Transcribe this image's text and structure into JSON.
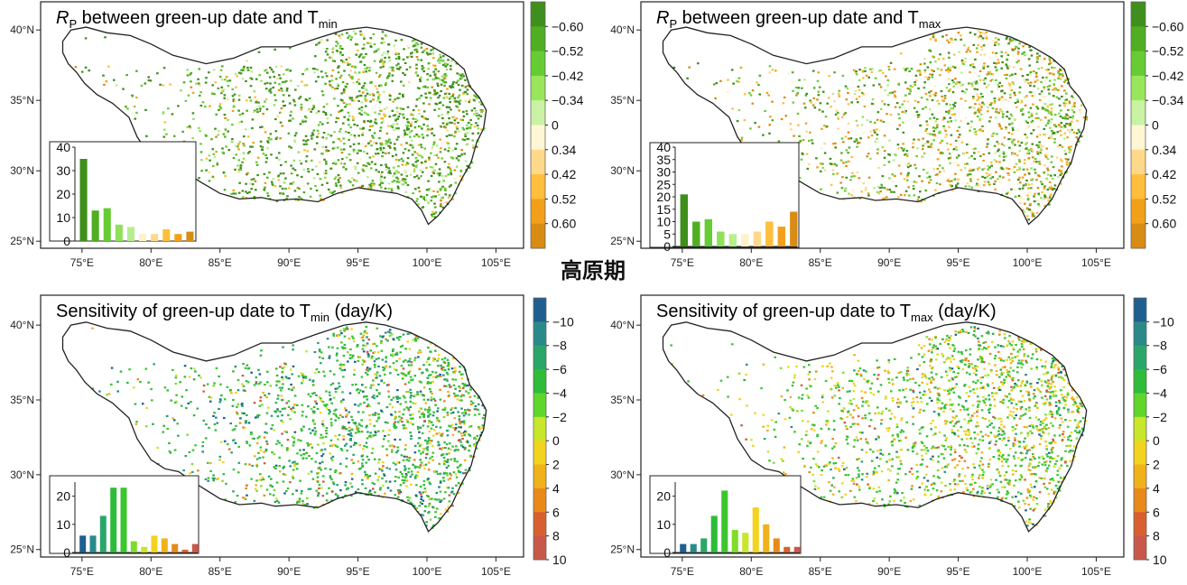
{
  "center_label": "高原期",
  "map_axes": {
    "x_ticks": [
      "75°E",
      "80°E",
      "85°E",
      "90°E",
      "95°E",
      "100°E",
      "105°E"
    ],
    "y_ticks": [
      "40°N",
      "35°N",
      "30°N",
      "25°N"
    ]
  },
  "colors": {
    "rp_scale": [
      "#3f8f1c",
      "#4fae22",
      "#66cc33",
      "#99e65c",
      "#c9f2a4",
      "#fff6d5",
      "#ffd98a",
      "#ffbe3c",
      "#f2a01a",
      "#d98c14"
    ],
    "sens_scale": [
      "#1f5f8f",
      "#2a8a8a",
      "#2aa66a",
      "#2ebc3a",
      "#5fd62a",
      "#c8e62a",
      "#f2d31f",
      "#f0b11a",
      "#e8891a",
      "#d86030",
      "#c8584a"
    ]
  },
  "chart_data": [
    {
      "id": "rp_tmin",
      "type": "bar",
      "title_parts": {
        "r": "R",
        "r_sub": "P",
        "text": " between green-up date and T",
        "sub": "min"
      },
      "colorbar_labels": [
        "-0.60",
        "-0.52",
        "-0.42",
        "-0.34",
        "0",
        "0.34",
        "0.42",
        "0.52",
        "0.60"
      ],
      "inset": {
        "values": [
          35,
          13,
          14,
          7,
          6,
          3,
          3,
          5,
          3,
          4
        ],
        "colors": [
          "#3f8f1c",
          "#4fae22",
          "#66cc33",
          "#8fe05a",
          "#b6ee8e",
          "#fff1c8",
          "#ffd98a",
          "#ffbe3c",
          "#f2a01a",
          "#d98c14"
        ],
        "ylim": [
          0,
          40
        ],
        "y_ticks": [
          0,
          10,
          20,
          30,
          40
        ]
      }
    },
    {
      "id": "rp_tmax",
      "type": "bar",
      "title_parts": {
        "r": "R",
        "r_sub": "P",
        "text": " between green-up date and T",
        "sub": "max"
      },
      "colorbar_labels": [
        "-0.60",
        "-0.52",
        "-0.42",
        "-0.34",
        "0",
        "0.34",
        "0.42",
        "0.52",
        "0.60"
      ],
      "inset": {
        "values": [
          21,
          10,
          11,
          6,
          5,
          5,
          6,
          10,
          8,
          14
        ],
        "colors": [
          "#3f8f1c",
          "#4fae22",
          "#66cc33",
          "#8fe05a",
          "#b6ee8e",
          "#fff1c8",
          "#ffd98a",
          "#ffbe3c",
          "#f2a01a",
          "#d98c14"
        ],
        "ylim": [
          0,
          40
        ],
        "y_ticks": [
          0,
          5,
          10,
          15,
          20,
          25,
          30,
          35,
          40
        ]
      }
    },
    {
      "id": "sens_tmin",
      "type": "bar",
      "title_parts": {
        "text": "Sensitivity of green-up date to T",
        "sub": "min",
        "suffix": " (day/K)"
      },
      "colorbar_labels": [
        "-10",
        "-8",
        "-6",
        "-4",
        "-2",
        "0",
        "2",
        "4",
        "6",
        "8",
        "10"
      ],
      "inset": {
        "values": [
          6,
          6,
          13,
          23,
          23,
          4,
          2,
          6,
          5,
          3,
          1,
          3
        ],
        "colors": [
          "#1f5f8f",
          "#2a8a8a",
          "#2aa66a",
          "#2ebc3a",
          "#3cc62e",
          "#7fdc2a",
          "#c8e62a",
          "#f2d31f",
          "#f0b11a",
          "#e8891a",
          "#d86030",
          "#c8584a"
        ],
        "ylim": [
          0,
          25
        ],
        "y_ticks": [
          0,
          10,
          20
        ]
      }
    },
    {
      "id": "sens_tmax",
      "type": "bar",
      "title_parts": {
        "text": "Sensitivity of green-up date to T",
        "sub": "max",
        "suffix": " (day/K)"
      },
      "colorbar_labels": [
        "-10",
        "-8",
        "-6",
        "-4",
        "-2",
        "0",
        "2",
        "4",
        "6",
        "8",
        "10"
      ],
      "inset": {
        "values": [
          3,
          3,
          5,
          13,
          22,
          8,
          7,
          16,
          10,
          5,
          2,
          2
        ],
        "colors": [
          "#1f5f8f",
          "#2a8a8a",
          "#2aa66a",
          "#2ebc3a",
          "#3cc62e",
          "#7fdc2a",
          "#c8e62a",
          "#f2d31f",
          "#f0b11a",
          "#e8891a",
          "#d86030",
          "#c8584a"
        ],
        "ylim": [
          0,
          25
        ],
        "y_ticks": [
          0,
          10,
          20
        ]
      }
    }
  ]
}
